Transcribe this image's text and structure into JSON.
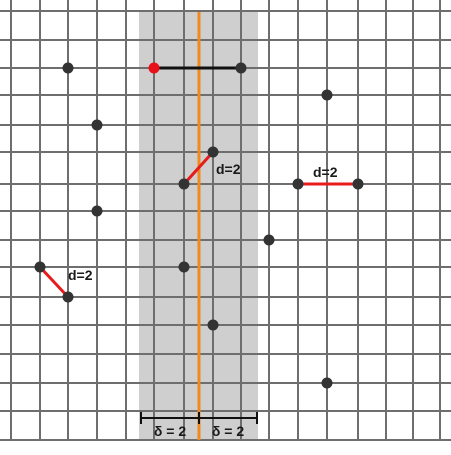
{
  "colors": {
    "grid": "#6e6e6e",
    "band": "#cfcfcf",
    "divider": "#f08a1c",
    "point": "#333333",
    "highlight_point": "#e8101a",
    "pair_edge": "#e81b1b",
    "scan_edge": "#111111"
  },
  "labels": {
    "d1": "d=2",
    "d2": "d=2",
    "d3": "d=2",
    "delta_left": "δ = 2",
    "delta_right": "δ = 2"
  }
}
